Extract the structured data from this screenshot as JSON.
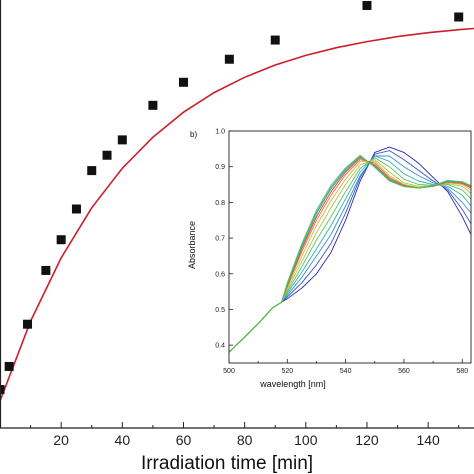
{
  "chart_data": [
    {
      "type": "scatter",
      "xlabel": "Irradiation time [min]",
      "ylabel": "",
      "xlim": [
        0,
        155
      ],
      "ylim": [
        0,
        1
      ],
      "x_ticks": [
        20,
        40,
        60,
        80,
        100,
        120,
        140
      ],
      "grid": false,
      "series": [
        {
          "kind": "points",
          "marker": "square",
          "color": "#111111",
          "x": [
            0,
            3,
            9,
            15,
            20,
            25,
            30,
            35,
            40,
            50,
            60,
            75,
            90,
            120,
            150
          ],
          "y": [
            0.03,
            0.09,
            0.2,
            0.34,
            0.42,
            0.5,
            0.6,
            0.64,
            0.68,
            0.77,
            0.83,
            0.89,
            0.94,
            1.03,
            1.0
          ]
        },
        {
          "kind": "fit",
          "color": "#cc1f2b",
          "x": [
            0,
            10,
            20,
            30,
            40,
            50,
            60,
            70,
            80,
            90,
            100,
            110,
            120,
            130,
            140,
            150,
            155
          ],
          "y": [
            0.0,
            0.208,
            0.373,
            0.503,
            0.606,
            0.687,
            0.752,
            0.803,
            0.843,
            0.875,
            0.9,
            0.92,
            0.936,
            0.949,
            0.959,
            0.967,
            0.97
          ]
        }
      ]
    },
    {
      "type": "line",
      "panel_label": "b)",
      "xlabel": "wavelength [nm]",
      "ylabel": "Absorbance",
      "xlim": [
        500,
        583
      ],
      "ylim": [
        0.35,
        1.0
      ],
      "x_ticks": [
        500,
        520,
        540,
        560,
        580
      ],
      "y_ticks": [
        0.4,
        0.5,
        0.6,
        0.7,
        0.8,
        0.9,
        1.0
      ],
      "grid": false,
      "x": [
        500,
        505,
        510,
        515,
        518,
        520,
        525,
        530,
        535,
        540,
        545,
        550,
        555,
        560,
        565,
        570,
        575,
        580,
        583
      ],
      "series": [
        {
          "color": "#2c2aa6",
          "values": [
            0.38,
            0.42,
            0.46,
            0.505,
            0.52,
            0.53,
            0.56,
            0.6,
            0.66,
            0.75,
            0.86,
            0.94,
            0.955,
            0.94,
            0.91,
            0.87,
            0.83,
            0.76,
            0.71
          ]
        },
        {
          "color": "#3b57c4",
          "values": [
            0.38,
            0.42,
            0.46,
            0.505,
            0.52,
            0.535,
            0.575,
            0.625,
            0.685,
            0.77,
            0.87,
            0.935,
            0.945,
            0.92,
            0.89,
            0.86,
            0.835,
            0.78,
            0.74
          ]
        },
        {
          "color": "#3a8fd6",
          "values": [
            0.38,
            0.42,
            0.46,
            0.505,
            0.52,
            0.54,
            0.59,
            0.65,
            0.71,
            0.79,
            0.875,
            0.93,
            0.93,
            0.9,
            0.875,
            0.855,
            0.84,
            0.8,
            0.77
          ]
        },
        {
          "color": "#2fb7a6",
          "values": [
            0.38,
            0.42,
            0.46,
            0.505,
            0.52,
            0.545,
            0.605,
            0.67,
            0.735,
            0.81,
            0.885,
            0.93,
            0.915,
            0.88,
            0.86,
            0.85,
            0.845,
            0.82,
            0.79
          ]
        },
        {
          "color": "#5cc06a",
          "values": [
            0.38,
            0.42,
            0.46,
            0.505,
            0.52,
            0.55,
            0.62,
            0.695,
            0.76,
            0.83,
            0.895,
            0.925,
            0.9,
            0.865,
            0.85,
            0.848,
            0.85,
            0.835,
            0.81
          ]
        },
        {
          "color": "#a8c64a",
          "values": [
            0.38,
            0.42,
            0.46,
            0.505,
            0.52,
            0.555,
            0.635,
            0.715,
            0.785,
            0.85,
            0.905,
            0.92,
            0.885,
            0.855,
            0.845,
            0.846,
            0.852,
            0.845,
            0.825
          ]
        },
        {
          "color": "#d8b43a",
          "values": [
            0.38,
            0.42,
            0.46,
            0.505,
            0.52,
            0.56,
            0.65,
            0.735,
            0.805,
            0.865,
            0.915,
            0.915,
            0.875,
            0.85,
            0.842,
            0.845,
            0.855,
            0.85,
            0.835
          ]
        },
        {
          "color": "#d9762f",
          "values": [
            0.38,
            0.42,
            0.46,
            0.505,
            0.52,
            0.565,
            0.662,
            0.75,
            0.82,
            0.878,
            0.92,
            0.91,
            0.87,
            0.848,
            0.84,
            0.845,
            0.857,
            0.853,
            0.84
          ]
        },
        {
          "color": "#c9473a",
          "values": [
            0.38,
            0.42,
            0.46,
            0.505,
            0.52,
            0.568,
            0.67,
            0.76,
            0.83,
            0.885,
            0.925,
            0.905,
            0.866,
            0.846,
            0.84,
            0.845,
            0.858,
            0.855,
            0.843
          ]
        },
        {
          "color": "#8a8a8a",
          "values": [
            0.38,
            0.42,
            0.46,
            0.505,
            0.52,
            0.57,
            0.675,
            0.768,
            0.838,
            0.89,
            0.928,
            0.902,
            0.864,
            0.845,
            0.84,
            0.846,
            0.859,
            0.856,
            0.845
          ]
        },
        {
          "color": "#2fb7c9",
          "values": [
            0.38,
            0.42,
            0.46,
            0.505,
            0.52,
            0.572,
            0.68,
            0.772,
            0.842,
            0.893,
            0.93,
            0.9,
            0.862,
            0.845,
            0.84,
            0.846,
            0.86,
            0.857,
            0.846
          ]
        },
        {
          "color": "#52c441",
          "values": [
            0.38,
            0.42,
            0.46,
            0.505,
            0.52,
            0.575,
            0.685,
            0.778,
            0.848,
            0.897,
            0.932,
            0.898,
            0.86,
            0.844,
            0.84,
            0.847,
            0.862,
            0.858,
            0.847
          ]
        }
      ]
    }
  ]
}
